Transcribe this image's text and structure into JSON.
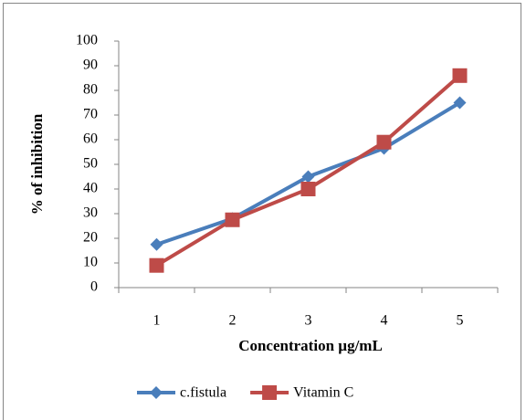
{
  "chart_data": {
    "type": "line",
    "x_label": "Concentration µg/mL",
    "y_label": "% of inhibition",
    "categories": [
      "1",
      "2",
      "3",
      "4",
      "5"
    ],
    "series": [
      {
        "name": "c.fistula",
        "color": "#4a7ebb",
        "marker": "diamond",
        "values": [
          17.5,
          28,
          45,
          56.5,
          75
        ]
      },
      {
        "name": "Vitamin C",
        "color": "#be4b48",
        "marker": "square",
        "values": [
          9,
          27.5,
          40,
          59,
          86
        ]
      }
    ],
    "ylim": [
      0,
      100
    ],
    "yticks": [
      0,
      10,
      20,
      30,
      40,
      50,
      60,
      70,
      80,
      90,
      100
    ],
    "grid": false,
    "legend": "bottom"
  }
}
